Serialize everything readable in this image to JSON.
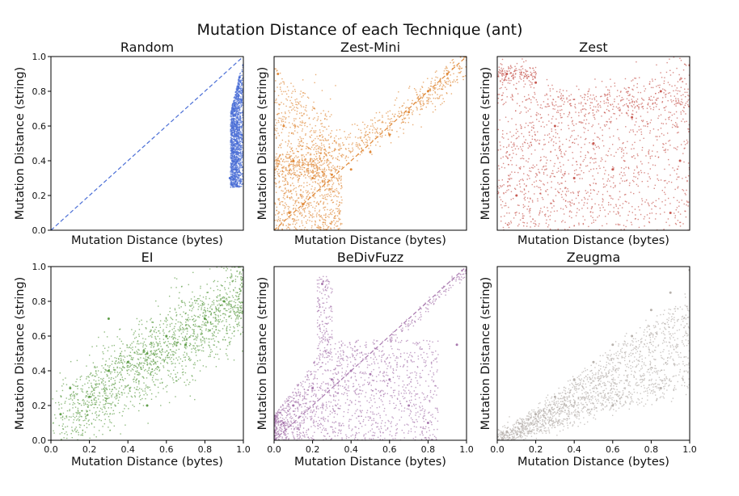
{
  "figure": {
    "title": "Mutation Distance of each Technique (ant)"
  },
  "chart_data": [
    {
      "type": "scatter",
      "title": "Random",
      "xlabel": "Mutation Distance (bytes)",
      "ylabel": "Mutation Distance (string)",
      "color": "#4a6ed6",
      "xlim": [
        0,
        1
      ],
      "ylim": [
        0,
        1
      ],
      "xticks": [],
      "yticks": [
        "0.0",
        "0.2",
        "0.4",
        "0.6",
        "0.8",
        "1.0"
      ],
      "diagonal": true,
      "points": [
        [
          0.95,
          0.45
        ],
        [
          0.97,
          0.62
        ],
        [
          0.99,
          0.75
        ],
        [
          0.98,
          0.88
        ],
        [
          0.96,
          0.35
        ],
        [
          0.93,
          0.3
        ],
        [
          1.0,
          0.95
        ],
        [
          0.99,
          0.55
        ],
        [
          0.97,
          0.5
        ],
        [
          0.95,
          0.7
        ]
      ]
    },
    {
      "type": "scatter",
      "title": "Zest-Mini",
      "xlabel": "Mutation Distance (bytes)",
      "ylabel": "Mutation Distance (string)",
      "color": "#e08a3a",
      "xlim": [
        0,
        1
      ],
      "ylim": [
        0,
        1
      ],
      "xticks": [],
      "yticks": [],
      "diagonal": true,
      "points": [
        [
          0.02,
          0.9
        ],
        [
          0.05,
          0.6
        ],
        [
          0.1,
          0.4
        ],
        [
          0.2,
          0.3
        ],
        [
          0.3,
          0.32
        ],
        [
          0.4,
          0.35
        ],
        [
          0.5,
          0.45
        ],
        [
          0.6,
          0.55
        ],
        [
          0.7,
          0.68
        ],
        [
          0.8,
          0.8
        ],
        [
          0.9,
          0.9
        ],
        [
          1.0,
          1.0
        ],
        [
          0.08,
          0.1
        ],
        [
          0.15,
          0.15
        ]
      ]
    },
    {
      "type": "scatter",
      "title": "Zest",
      "xlabel": "Mutation Distance (bytes)",
      "ylabel": "Mutation Distance (string)",
      "color": "#c75a52",
      "xlim": [
        0,
        1
      ],
      "ylim": [
        0,
        1
      ],
      "xticks": [],
      "yticks": [],
      "diagonal": false,
      "points": [
        [
          0.05,
          0.9
        ],
        [
          0.2,
          0.85
        ],
        [
          0.3,
          0.6
        ],
        [
          0.5,
          0.5
        ],
        [
          0.7,
          0.65
        ],
        [
          0.85,
          0.8
        ],
        [
          1.0,
          0.95
        ],
        [
          0.1,
          0.2
        ],
        [
          0.4,
          0.3
        ],
        [
          0.6,
          0.35
        ],
        [
          0.9,
          0.1
        ],
        [
          0.95,
          0.4
        ]
      ]
    },
    {
      "type": "scatter",
      "title": "EI",
      "xlabel": "Mutation Distance (bytes)",
      "ylabel": "Mutation Distance (string)",
      "color": "#5f9e48",
      "xlim": [
        0,
        1
      ],
      "ylim": [
        0,
        1
      ],
      "xticks": [
        "0.0",
        "0.2",
        "0.4",
        "0.6",
        "0.8",
        "1.0"
      ],
      "yticks": [
        "0.0",
        "0.2",
        "0.4",
        "0.6",
        "0.8",
        "1.0"
      ],
      "diagonal": false,
      "points": [
        [
          0.05,
          0.15
        ],
        [
          0.1,
          0.3
        ],
        [
          0.2,
          0.25
        ],
        [
          0.3,
          0.4
        ],
        [
          0.4,
          0.45
        ],
        [
          0.5,
          0.5
        ],
        [
          0.6,
          0.6
        ],
        [
          0.7,
          0.55
        ],
        [
          0.8,
          0.7
        ],
        [
          0.9,
          0.8
        ],
        [
          1.0,
          0.98
        ],
        [
          0.3,
          0.7
        ],
        [
          0.5,
          0.2
        ]
      ]
    },
    {
      "type": "scatter",
      "title": "BeDivFuzz",
      "xlabel": "Mutation Distance (bytes)",
      "ylabel": "Mutation Distance (string)",
      "color": "#a878ae",
      "xlim": [
        0,
        1
      ],
      "ylim": [
        0,
        1
      ],
      "xticks": [
        "0.0",
        "0.2",
        "0.4",
        "0.6",
        "0.8",
        "1.0"
      ],
      "yticks": [],
      "diagonal": true,
      "points": [
        [
          0.05,
          0.1
        ],
        [
          0.1,
          0.2
        ],
        [
          0.2,
          0.3
        ],
        [
          0.25,
          0.9
        ],
        [
          0.3,
          0.35
        ],
        [
          0.4,
          0.4
        ],
        [
          0.5,
          0.38
        ],
        [
          0.6,
          0.35
        ],
        [
          0.7,
          0.2
        ],
        [
          0.8,
          0.1
        ],
        [
          0.95,
          0.55
        ],
        [
          1.0,
          0.98
        ]
      ]
    },
    {
      "type": "scatter",
      "title": "Zeugma",
      "xlabel": "Mutation Distance (bytes)",
      "ylabel": "Mutation Distance (string)",
      "color": "#b7b1ac",
      "xlim": [
        0,
        1
      ],
      "ylim": [
        0,
        1
      ],
      "xticks": [
        "0.0",
        "0.2",
        "0.4",
        "0.6",
        "0.8",
        "1.0"
      ],
      "yticks": [],
      "diagonal": false,
      "points": [
        [
          0.05,
          0.05
        ],
        [
          0.2,
          0.15
        ],
        [
          0.3,
          0.25
        ],
        [
          0.4,
          0.35
        ],
        [
          0.5,
          0.45
        ],
        [
          0.6,
          0.55
        ],
        [
          0.7,
          0.6
        ],
        [
          0.8,
          0.75
        ],
        [
          0.9,
          0.85
        ],
        [
          1.0,
          0.98
        ],
        [
          0.6,
          0.2
        ],
        [
          0.85,
          0.3
        ]
      ]
    }
  ]
}
